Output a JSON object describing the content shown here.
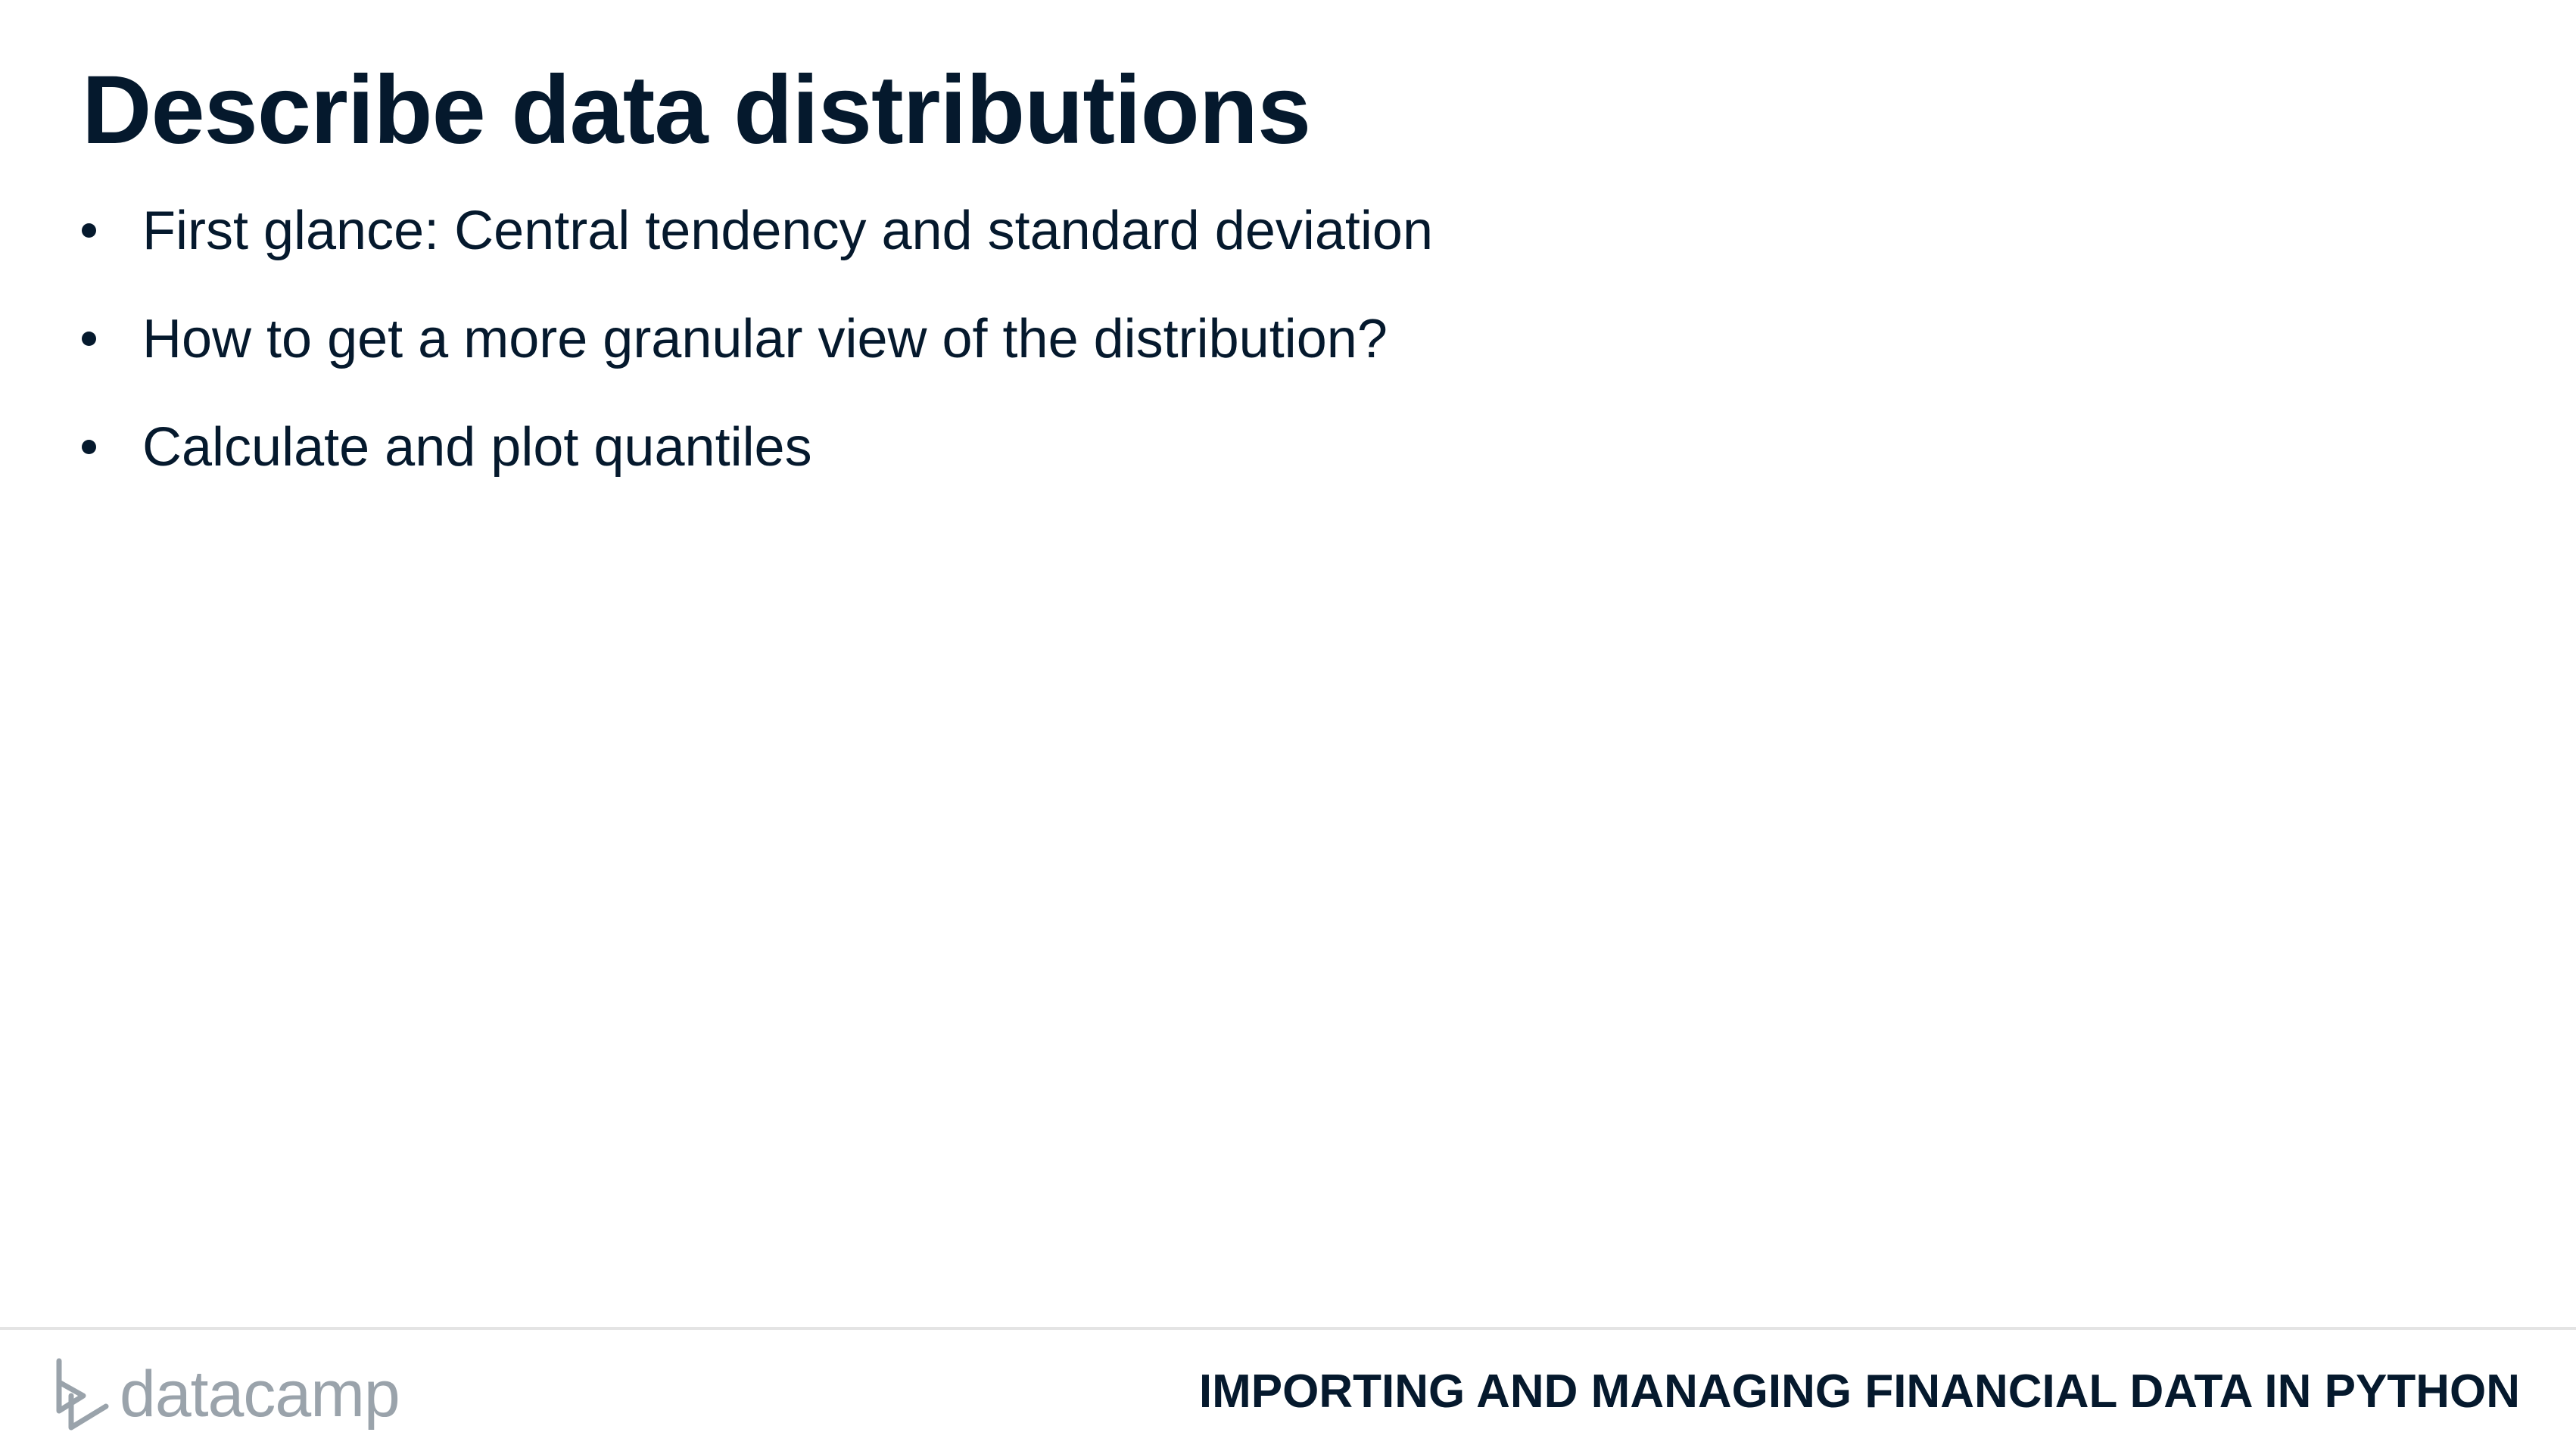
{
  "slide": {
    "title": "Describe data distributions",
    "bullets": [
      "First glance: Central tendency and standard deviation",
      "How to get a more granular view of the distribution?",
      "Calculate and plot quantiles"
    ]
  },
  "footer": {
    "brand_name": "datacamp",
    "brand_icon": "datacamp-logo-icon",
    "course_title": "IMPORTING AND MANAGING FINANCIAL DATA IN PYTHON"
  },
  "colors": {
    "text": "#05192d",
    "brand_gray": "#9aa3ab",
    "divider": "#e4e4e4",
    "background": "#ffffff"
  }
}
